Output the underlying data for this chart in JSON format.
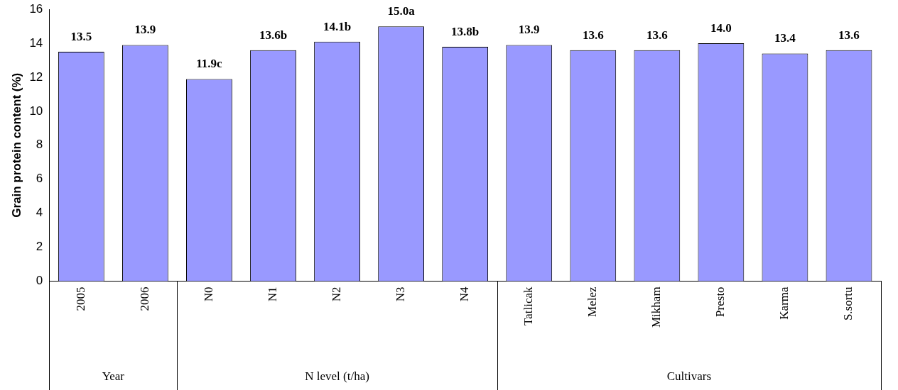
{
  "chart_data": {
    "type": "bar",
    "ylabel": "Grain protein content (%)",
    "categories": [
      "2005",
      "2006",
      "N0",
      "N1",
      "N2",
      "N3",
      "N4",
      "Tatlicak",
      "Melez",
      "Mikham",
      "Presto",
      "Karma",
      "S.sortu"
    ],
    "values": [
      13.5,
      13.9,
      11.9,
      13.6,
      14.1,
      15.0,
      13.8,
      13.9,
      13.6,
      13.6,
      14.0,
      13.4,
      13.6
    ],
    "value_labels": [
      "13.5",
      "13.9",
      "11.9c",
      "13.6b",
      "14.1b",
      "15.0a",
      "13.8b",
      "13.9",
      "13.6",
      "13.6",
      "14.0",
      "13.4",
      "13.6"
    ],
    "color": "#9999ff",
    "ylim": [
      0,
      16
    ],
    "yticks": [
      0,
      2,
      4,
      6,
      8,
      10,
      12,
      14,
      16
    ],
    "grid": false,
    "legend": false,
    "annotations": [
      "Year",
      "N level (t/ha)",
      "Cultivars"
    ]
  }
}
